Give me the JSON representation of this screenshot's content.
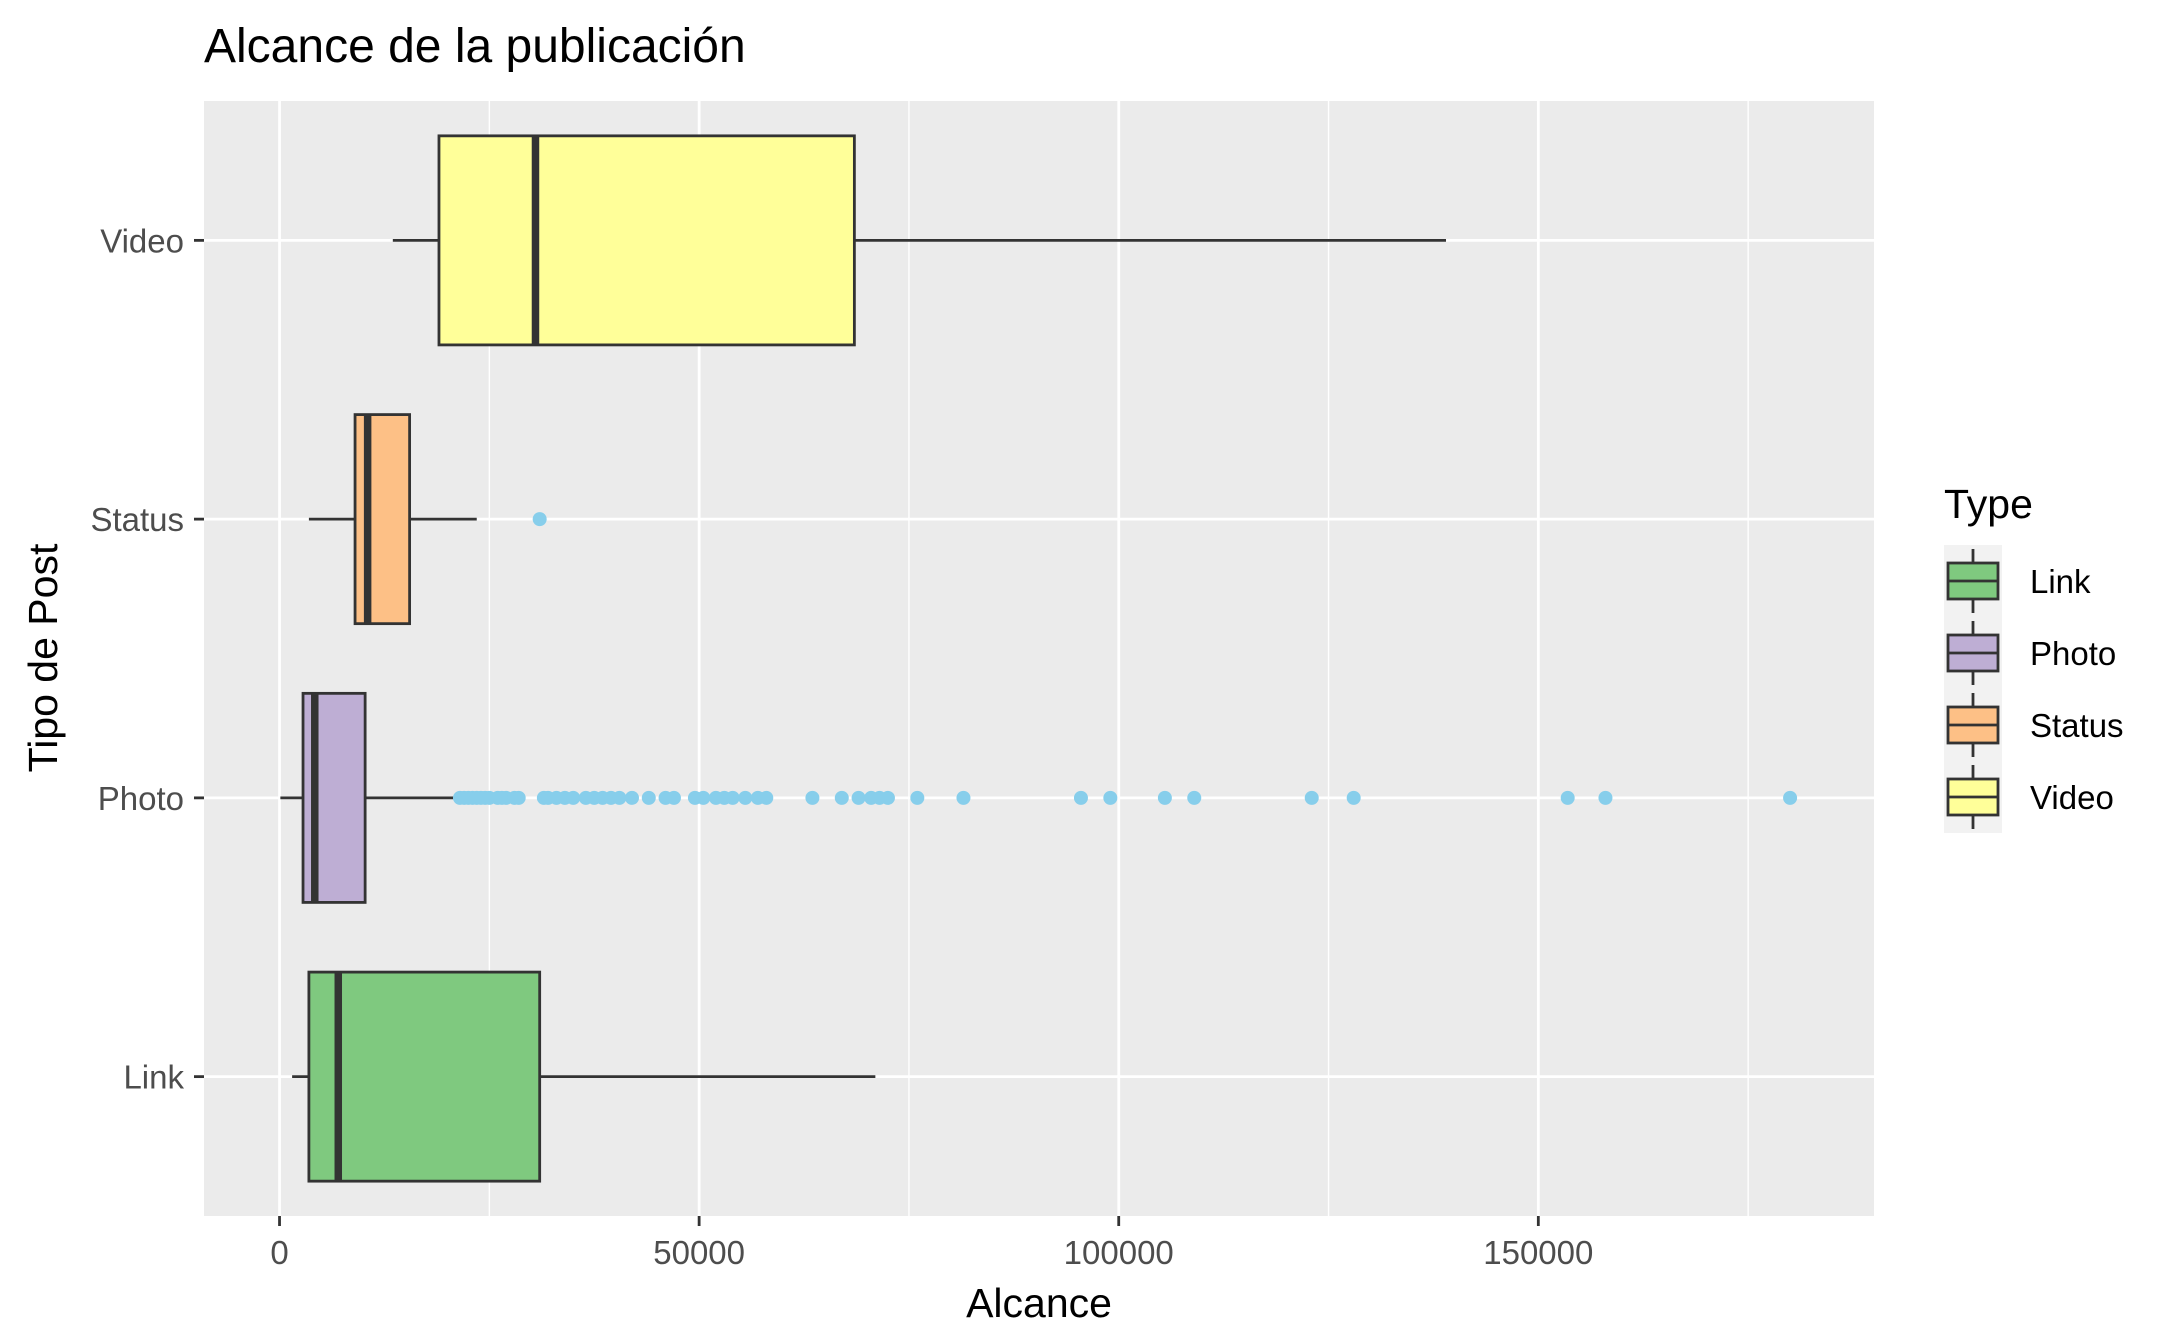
{
  "chart_data": {
    "type": "boxplot",
    "title": "Alcance de la publicación",
    "xlabel": "Alcance",
    "ylabel": "Tipo de Post",
    "xlim": [
      -9000,
      190000
    ],
    "xticks": [
      0,
      50000,
      100000,
      150000
    ],
    "xtick_labels": [
      "0",
      "50000",
      "100000",
      "150000"
    ],
    "grid": true,
    "outlier_color": "#87ceeb",
    "panel_color": "#ebebeb",
    "legend": {
      "title": "Type",
      "placement": "right",
      "entries": [
        {
          "label": "Link",
          "color": "#7fc97f"
        },
        {
          "label": "Photo",
          "color": "#beaed4"
        },
        {
          "label": "Status",
          "color": "#fdc086"
        },
        {
          "label": "Video",
          "color": "#ffff99"
        }
      ]
    },
    "categories": [
      "Link",
      "Photo",
      "Status",
      "Video"
    ],
    "boxes": [
      {
        "category": "Link",
        "color": "#7fc97f",
        "min": 1500,
        "q1": 3500,
        "median": 7000,
        "q3": 31000,
        "max": 71000,
        "outliers": []
      },
      {
        "category": "Photo",
        "color": "#beaed4",
        "min": 100,
        "q1": 2800,
        "median": 4200,
        "q3": 10200,
        "max": 21500,
        "outliers": [
          21500,
          22000,
          22500,
          23000,
          23500,
          24000,
          24500,
          25000,
          26000,
          26500,
          27000,
          28000,
          28500,
          31500,
          32000,
          33000,
          34000,
          35000,
          36500,
          37500,
          38500,
          39500,
          40500,
          42000,
          44000,
          46000,
          47000,
          49500,
          50500,
          52000,
          53000,
          54000,
          55500,
          57000,
          58000,
          63500,
          67000,
          69000,
          70500,
          71500,
          72500,
          76000,
          81500,
          95500,
          99000,
          105500,
          109000,
          123000,
          128000,
          153500,
          158000,
          180000
        ]
      },
      {
        "category": "Status",
        "color": "#fdc086",
        "min": 3500,
        "q1": 9000,
        "median": 10500,
        "q3": 15500,
        "max": 23500,
        "outliers": [
          31000
        ]
      },
      {
        "category": "Video",
        "color": "#ffff99",
        "min": 13500,
        "q1": 19000,
        "median": 30500,
        "q3": 68500,
        "max": 139000,
        "outliers": []
      }
    ]
  }
}
